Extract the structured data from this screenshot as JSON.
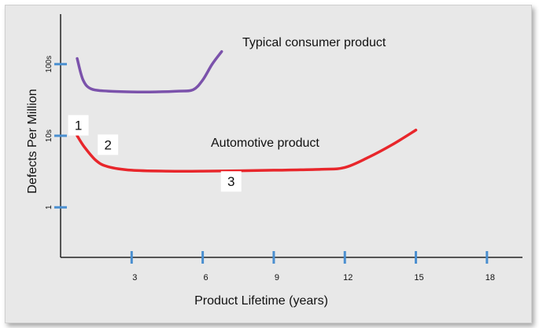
{
  "chart_data": {
    "type": "line",
    "title": "",
    "xlabel": "Product Lifetime (years)",
    "ylabel": "Defects Per Million",
    "x_ticks": [
      3,
      6,
      9,
      12,
      15,
      18
    ],
    "x_tick_labels": [
      "3",
      "6",
      "9",
      "12",
      "15",
      "18"
    ],
    "y_ticks": [
      1,
      10,
      100
    ],
    "y_tick_labels": [
      "1",
      "10s",
      "100s"
    ],
    "xlim": [
      0,
      19.5
    ],
    "y_scale": "log",
    "ylim": [
      0.2,
      500
    ],
    "grid": false,
    "series": [
      {
        "name": "Typical consumer product",
        "color": "#7b52ab",
        "x": [
          0.7,
          0.95,
          1.3,
          2.0,
          3.0,
          4.0,
          5.0,
          5.6,
          6.0,
          6.4,
          6.8
        ],
        "y": [
          120,
          60,
          45,
          42,
          41,
          41,
          42,
          44,
          60,
          100,
          150
        ]
      },
      {
        "name": "Automotive product",
        "color": "#e8262b",
        "x": [
          0.7,
          1.0,
          1.5,
          2.0,
          3.0,
          4.5,
          6.0,
          9.0,
          11.0,
          12.0,
          13.0,
          14.0,
          15.0
        ],
        "y": [
          10,
          7.0,
          4.5,
          3.7,
          3.3,
          3.2,
          3.2,
          3.3,
          3.4,
          3.6,
          5.0,
          7.5,
          12
        ]
      }
    ],
    "annotations": [
      {
        "id": "one",
        "text": "1",
        "x": 0.75,
        "y": 14
      },
      {
        "id": "two",
        "text": "2",
        "x": 2.0,
        "y": 7.5
      },
      {
        "id": "three",
        "text": "3",
        "x": 7.2,
        "y": 2.3
      }
    ]
  }
}
